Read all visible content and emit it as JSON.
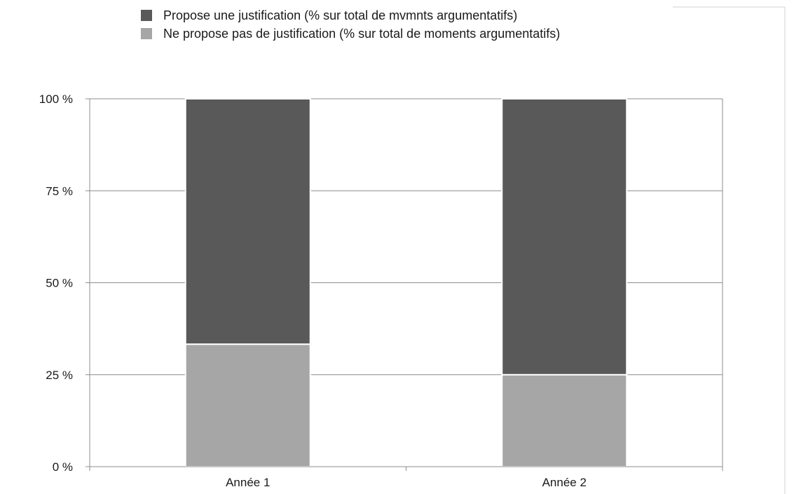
{
  "chart_data": {
    "type": "bar",
    "stacked": true,
    "percent": true,
    "categories": [
      "Année 1",
      "Année 2"
    ],
    "series": [
      {
        "name": "Ne propose pas de justification (% sur total de moments argumentatifs)",
        "values": [
          33.3,
          25.0
        ],
        "color": "#a6a6a6"
      },
      {
        "name": "Propose une justification (% sur total de mvmnts argumentatifs)",
        "values": [
          66.7,
          75.0
        ],
        "color": "#595959"
      }
    ],
    "ylim": [
      0,
      100
    ],
    "yticks": [
      0,
      25,
      50,
      75,
      100
    ],
    "ytick_labels": [
      "0 %",
      "25 %",
      "50 %",
      "75 %",
      "100 %"
    ],
    "grid": true,
    "legend_position": "top",
    "title": "",
    "xlabel": "",
    "ylabel": ""
  },
  "legend": [
    {
      "label": "Propose une justification (% sur total de mvmnts argumentatifs)",
      "color": "#595959"
    },
    {
      "label": "Ne propose pas de justification (% sur total de moments argumentatifs)",
      "color": "#a6a6a6"
    }
  ]
}
